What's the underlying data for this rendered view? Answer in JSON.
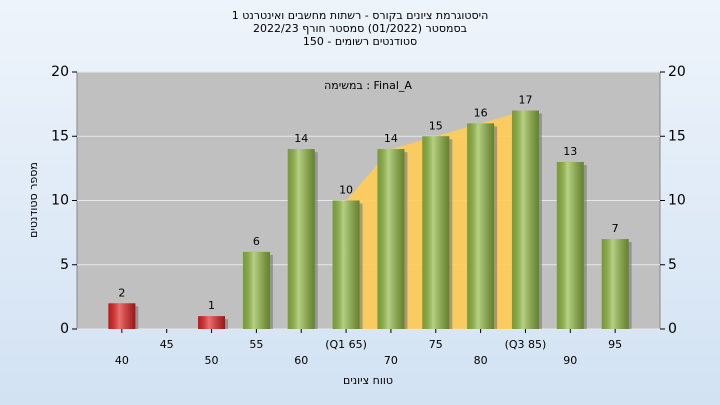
{
  "chart_data": {
    "type": "bar",
    "title_lines": [
      "היסטוגרמת ציונים בקורס - רשתות מחשבים ואינטרנט 1",
      "בסמסטר  (01/2022)  סמסטר חורף 2022/23",
      "סטודנטים רשומים - 150"
    ],
    "annotation": "במשימה : Final_A",
    "y_label": "מספר סטודנטים",
    "x_label": "טווח ציונים",
    "x": [
      40,
      45,
      50,
      55,
      60,
      65,
      70,
      75,
      80,
      85,
      90,
      95
    ],
    "values": [
      2,
      null,
      1,
      6,
      14,
      10,
      14,
      15,
      16,
      17,
      13,
      7
    ],
    "colors": [
      "#e02020",
      null,
      "#e02020",
      "#8fb840",
      "#8fb840",
      "#8fb840",
      "#8fb840",
      "#8fb840",
      "#8fb840",
      "#8fb840",
      "#8fb840",
      "#8fb840"
    ],
    "xlim": [
      35,
      100
    ],
    "xticks": [
      40,
      45,
      50,
      55,
      60,
      {
        "value": 65,
        "label": "(Q1 65)"
      },
      70,
      75,
      80,
      {
        "value": 85,
        "label": "(Q3 85)"
      },
      90,
      95
    ],
    "ylim": [
      0,
      20
    ],
    "yticks": [
      0,
      5,
      10,
      15,
      20
    ],
    "y2lim": [
      0,
      20
    ],
    "y2ticks": [
      0,
      5,
      10,
      15,
      20
    ],
    "quartile_band": [
      65,
      85
    ],
    "band_color": "#ffcc55",
    "grid": true
  }
}
